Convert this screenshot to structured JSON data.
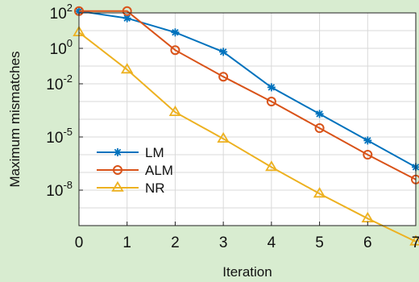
{
  "chart_data": {
    "type": "line",
    "title": "",
    "xlabel": "Iteration",
    "ylabel": "Maximum mismatches",
    "x": [
      0,
      1,
      2,
      3,
      4,
      5,
      6,
      7
    ],
    "xlim": [
      0,
      7
    ],
    "xticks": [
      "0",
      "1",
      "2",
      "3",
      "4",
      "5",
      "6",
      "7"
    ],
    "yscale": "log",
    "ylim_exp": [
      -10,
      2
    ],
    "yticks": [
      {
        "exp": 2,
        "base": "10",
        "sup": "2"
      },
      {
        "exp": 0,
        "base": "10",
        "sup": "0"
      },
      {
        "exp": -2,
        "base": "10",
        "sup": "-2"
      },
      {
        "exp": -5,
        "base": "10",
        "sup": "-5"
      },
      {
        "exp": -8,
        "base": "10",
        "sup": "-8"
      }
    ],
    "grid": true,
    "legend": "bottom-left",
    "series": [
      {
        "name": "LM",
        "marker": "asterisk",
        "color": "#0072bd",
        "y_log10": [
          2.1,
          1.7,
          0.9,
          -0.2,
          -2.2,
          -3.7,
          -5.2,
          -6.7
        ]
      },
      {
        "name": "ALM",
        "marker": "circle",
        "color": "#d95319",
        "y_log10": [
          2.1,
          2.1,
          -0.1,
          -1.6,
          -3.0,
          -4.5,
          -6.0,
          -7.4
        ]
      },
      {
        "name": "NR",
        "marker": "triangle",
        "color": "#edb120",
        "y_log10": [
          0.9,
          -1.2,
          -3.6,
          -5.1,
          -6.7,
          -8.2,
          -9.6,
          -10.9
        ]
      }
    ]
  }
}
